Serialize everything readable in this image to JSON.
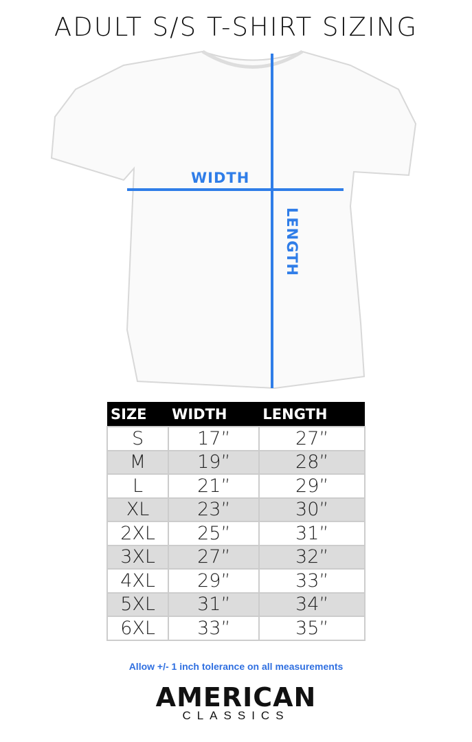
{
  "title": "ADULT S/S T-SHIRT SIZING",
  "diagram": {
    "width_label": "WIDTH",
    "length_label": "LENGTH",
    "line_color": "#2f7de8"
  },
  "table": {
    "headers": [
      "SIZE",
      "WIDTH",
      "LENGTH"
    ],
    "rows": [
      [
        "S",
        "17”",
        "27”"
      ],
      [
        "M",
        "19”",
        "28”"
      ],
      [
        "L",
        "21”",
        "29”"
      ],
      [
        "XL",
        "23”",
        "30”"
      ],
      [
        "2XL",
        "25”",
        "31”"
      ],
      [
        "3XL",
        "27”",
        "32”"
      ],
      [
        "4XL",
        "29”",
        "33”"
      ],
      [
        "5XL",
        "31”",
        "34”"
      ],
      [
        "6XL",
        "33”",
        "35”"
      ]
    ]
  },
  "note": "Allow +/- 1 inch tolerance on all measurements",
  "logo": {
    "line1": "AMERICAN",
    "line2": "CLASSICS"
  }
}
